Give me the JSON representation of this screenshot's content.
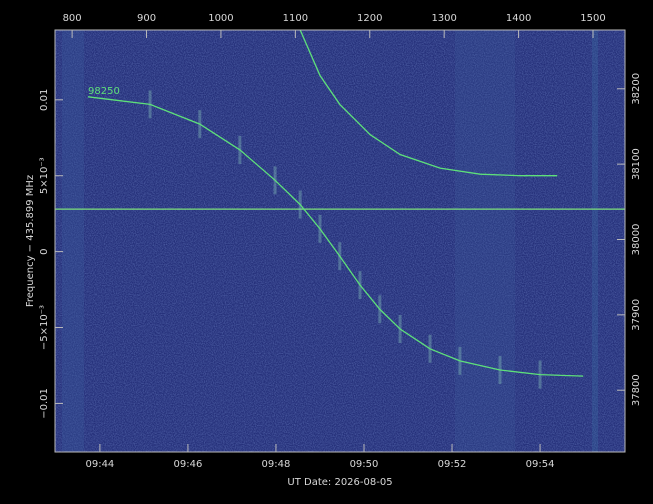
{
  "chart_data": {
    "type": "line",
    "xlabel": "UT Date: 2026-08-05",
    "ylabel": "Frequency − 435.899 MHz",
    "xlim": [
      42.98,
      55.93
    ],
    "xticks": [
      {
        "value": 44,
        "label": "09:44"
      },
      {
        "value": 46,
        "label": "09:46"
      },
      {
        "value": 48,
        "label": "09:48"
      },
      {
        "value": 50,
        "label": "09:50"
      },
      {
        "value": 52,
        "label": "09:52"
      },
      {
        "value": 54,
        "label": "09:54"
      }
    ],
    "x2lim": [
      777,
      1543
    ],
    "x2ticks": [
      800,
      900,
      1000,
      1100,
      1200,
      1300,
      1400,
      1500
    ],
    "ylim": [
      -0.0132,
      0.0146
    ],
    "yticks": [
      {
        "value": 0.01,
        "label": "0.01"
      },
      {
        "value": 0.005,
        "label": "5×10⁻³"
      },
      {
        "value": 0,
        "label": "0"
      },
      {
        "value": -0.005,
        "label": "−5×10⁻³"
      },
      {
        "value": -0.01,
        "label": "−0.01"
      }
    ],
    "y2lim": [
      37718,
      38278
    ],
    "y2ticks": [
      37800,
      37900,
      38000,
      38100,
      38200
    ],
    "hline": 0.0028,
    "annotation": {
      "text": "98250",
      "x": 43.73,
      "y": 0.0102
    },
    "series": [
      {
        "color": "#5ee07a",
        "x": [
          43.73,
          45.14,
          46.27,
          47.18,
          47.98,
          48.55,
          49.0,
          49.45,
          49.91,
          50.36,
          50.82,
          51.5,
          52.18,
          53.09,
          54.0,
          54.98
        ],
        "values": [
          0.0102,
          0.0097,
          0.0084,
          0.0067,
          0.0047,
          0.0031,
          0.0015,
          -0.0003,
          -0.0022,
          -0.0038,
          -0.0051,
          -0.0064,
          -0.0072,
          -0.0078,
          -0.0081,
          -0.0082
        ]
      },
      {
        "color": "#5ee07a",
        "x": [
          48.55,
          49.0,
          49.45,
          50.14,
          50.82,
          51.73,
          52.64,
          53.55,
          54.39
        ],
        "values": [
          0.0146,
          0.0116,
          0.0097,
          0.0077,
          0.0064,
          0.0055,
          0.0051,
          0.005,
          0.005
        ]
      }
    ]
  }
}
